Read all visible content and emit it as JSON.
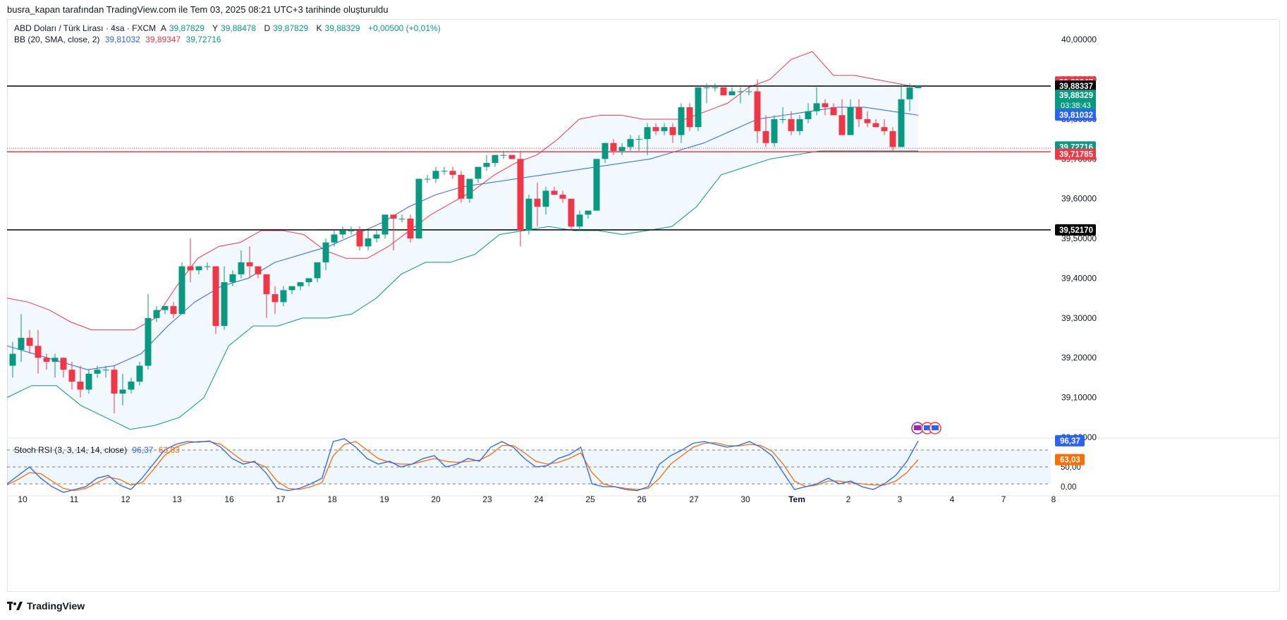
{
  "header": {
    "text": "busra_kapan tarafından TradingView.com ile Tem 03, 2025 08:21 UTC+3 tarihinde oluşturuldu"
  },
  "legend": {
    "symbol": "ABD Doları / Türk Lirası · 4sa · FXCM",
    "o_label": "A",
    "o": "39,87829",
    "h_label": "Y",
    "h": "39,88478",
    "l_label": "D",
    "l": "39,87829",
    "c_label": "K",
    "c": "39,88329",
    "change": "+0,00500 (+0,01%)",
    "bb_label": "BB (20, SMA, close, 2)",
    "bb_basis": "39,81032",
    "bb_upper": "39,89347",
    "bb_lower": "39,72716"
  },
  "stoch": {
    "label": "Stoch RSI (3, 3, 14, 14, close)",
    "k": "96,37",
    "d": "63,03"
  },
  "brand": {
    "name": "TradingView"
  },
  "colors": {
    "up": "#089981",
    "down": "#f23645",
    "basis": "#2962ff",
    "upper": "#f23645",
    "lower": "#089981",
    "k_line": "#2962ff",
    "d_line": "#ff6d00"
  },
  "chart_data": {
    "type": "candlestick",
    "ylim": [
      39.0,
      40.05
    ],
    "y_ticks": [
      "40,00000",
      "39,90000",
      "39,80000",
      "39,70000",
      "39,60000",
      "39,50000",
      "39,40000",
      "39,30000",
      "39,20000",
      "39,10000",
      "39,00000"
    ],
    "x_ticks": [
      "10",
      "11",
      "12",
      "13",
      "16",
      "17",
      "18",
      "19",
      "20",
      "23",
      "24",
      "25",
      "26",
      "27",
      "30",
      "Tem",
      "2",
      "3",
      "4",
      "7",
      "8"
    ],
    "horizontal_lines": [
      {
        "value": 39.88337,
        "color": "#000000",
        "label": "39,88337"
      },
      {
        "value": 39.71785,
        "color": "#f23645",
        "label": "39,71785"
      },
      {
        "value": 39.5217,
        "color": "#000000",
        "label": "39,52170"
      }
    ],
    "price_labels": [
      {
        "value": 39.89347,
        "text": "39,89347",
        "color": "#f23645"
      },
      {
        "value": 39.88337,
        "text": "39,88337",
        "color": "#000000"
      },
      {
        "value": 39.86,
        "text": "39,88329",
        "sub": "03:38:43",
        "color": "#089981"
      },
      {
        "value": 39.81032,
        "text": "39,81032",
        "color": "#2962ff"
      },
      {
        "value": 39.73,
        "text": "39,72716",
        "color": "#089981"
      },
      {
        "value": 39.712,
        "text": "39,71785",
        "color": "#f23645"
      },
      {
        "value": 39.5217,
        "text": "39,52170",
        "color": "#000000"
      }
    ],
    "candles_ohlc": [
      [
        39.18,
        39.24,
        39.15,
        39.21
      ],
      [
        39.22,
        39.31,
        39.19,
        39.25
      ],
      [
        39.25,
        39.27,
        39.21,
        39.23
      ],
      [
        39.23,
        39.27,
        39.16,
        39.2
      ],
      [
        39.2,
        39.21,
        39.17,
        39.19
      ],
      [
        39.19,
        39.21,
        39.15,
        39.2
      ],
      [
        39.2,
        39.2,
        39.15,
        39.17
      ],
      [
        39.17,
        39.19,
        39.12,
        39.14
      ],
      [
        39.14,
        39.18,
        39.1,
        39.12
      ],
      [
        39.12,
        39.17,
        39.11,
        39.16
      ],
      [
        39.16,
        39.18,
        39.15,
        39.17
      ],
      [
        39.17,
        39.18,
        39.15,
        39.17
      ],
      [
        39.17,
        39.18,
        39.06,
        39.11
      ],
      [
        39.11,
        39.16,
        39.08,
        39.12
      ],
      [
        39.12,
        39.15,
        39.11,
        39.14
      ],
      [
        39.14,
        39.19,
        39.13,
        39.18
      ],
      [
        39.18,
        39.36,
        39.17,
        39.3
      ],
      [
        39.3,
        39.33,
        39.29,
        39.32
      ],
      [
        39.32,
        39.33,
        39.31,
        39.33
      ],
      [
        39.33,
        39.34,
        39.3,
        39.31
      ],
      [
        39.31,
        39.44,
        39.31,
        39.43
      ],
      [
        39.43,
        39.5,
        39.39,
        39.42
      ],
      [
        39.42,
        39.43,
        39.41,
        39.43
      ],
      [
        39.43,
        39.44,
        39.42,
        39.43
      ],
      [
        39.43,
        39.43,
        39.26,
        39.28
      ],
      [
        39.28,
        39.43,
        39.27,
        39.39
      ],
      [
        39.39,
        39.42,
        39.38,
        39.41
      ],
      [
        39.41,
        39.47,
        39.4,
        39.44
      ],
      [
        39.44,
        39.48,
        39.4,
        39.43
      ],
      [
        39.43,
        39.43,
        39.4,
        39.41
      ],
      [
        39.41,
        39.41,
        39.3,
        39.36
      ],
      [
        39.36,
        39.38,
        39.31,
        39.34
      ],
      [
        39.34,
        39.38,
        39.33,
        39.37
      ],
      [
        39.37,
        39.38,
        39.36,
        39.38
      ],
      [
        39.38,
        39.39,
        39.37,
        39.39
      ],
      [
        39.39,
        39.4,
        39.38,
        39.4
      ],
      [
        39.4,
        39.44,
        39.39,
        39.44
      ],
      [
        39.44,
        39.5,
        39.42,
        39.49
      ],
      [
        39.49,
        39.52,
        39.48,
        39.51
      ],
      [
        39.51,
        39.53,
        39.5,
        39.52
      ],
      [
        39.52,
        39.53,
        39.51,
        39.52
      ],
      [
        39.52,
        39.53,
        39.47,
        39.48
      ],
      [
        39.48,
        39.52,
        39.47,
        39.5
      ],
      [
        39.5,
        39.52,
        39.49,
        39.51
      ],
      [
        39.51,
        39.56,
        39.5,
        39.56
      ],
      [
        39.56,
        39.56,
        39.47,
        39.55
      ],
      [
        39.55,
        39.56,
        39.54,
        39.55
      ],
      [
        39.55,
        39.56,
        39.49,
        39.5
      ],
      [
        39.5,
        39.65,
        39.5,
        39.65
      ],
      [
        39.65,
        39.66,
        39.64,
        39.65
      ],
      [
        39.65,
        39.68,
        39.64,
        39.67
      ],
      [
        39.67,
        39.68,
        39.66,
        39.67
      ],
      [
        39.67,
        39.68,
        39.65,
        39.66
      ],
      [
        39.66,
        39.67,
        39.59,
        39.6
      ],
      [
        39.6,
        39.65,
        39.59,
        39.65
      ],
      [
        39.65,
        39.68,
        39.64,
        39.68
      ],
      [
        39.68,
        39.71,
        39.67,
        39.69
      ],
      [
        39.69,
        39.71,
        39.68,
        39.71
      ],
      [
        39.71,
        39.72,
        39.7,
        39.71
      ],
      [
        39.71,
        39.71,
        39.7,
        39.7
      ],
      [
        39.7,
        39.72,
        39.48,
        39.52
      ],
      [
        39.52,
        39.61,
        39.51,
        39.6
      ],
      [
        39.6,
        39.64,
        39.53,
        39.58
      ],
      [
        39.58,
        39.63,
        39.56,
        39.62
      ],
      [
        39.62,
        39.63,
        39.61,
        39.61
      ],
      [
        39.61,
        39.62,
        39.59,
        39.6
      ],
      [
        39.6,
        39.6,
        39.52,
        39.53
      ],
      [
        39.53,
        39.57,
        39.52,
        39.56
      ],
      [
        39.56,
        39.57,
        39.55,
        39.57
      ],
      [
        39.57,
        39.7,
        39.57,
        39.7
      ],
      [
        39.7,
        39.74,
        39.69,
        39.74
      ],
      [
        39.74,
        39.75,
        39.71,
        39.72
      ],
      [
        39.72,
        39.74,
        39.71,
        39.73
      ],
      [
        39.73,
        39.76,
        39.72,
        39.75
      ],
      [
        39.75,
        39.76,
        39.72,
        39.75
      ],
      [
        39.75,
        39.79,
        39.71,
        39.78
      ],
      [
        39.78,
        39.79,
        39.76,
        39.77
      ],
      [
        39.77,
        39.79,
        39.76,
        39.78
      ],
      [
        39.78,
        39.79,
        39.74,
        39.76
      ],
      [
        39.76,
        39.84,
        39.74,
        39.83
      ],
      [
        39.83,
        39.84,
        39.77,
        39.78
      ],
      [
        39.78,
        39.88,
        39.77,
        39.88
      ],
      [
        39.88,
        39.89,
        39.84,
        39.88
      ],
      [
        39.88,
        39.89,
        39.87,
        39.88
      ],
      [
        39.88,
        39.88,
        39.86,
        39.86
      ],
      [
        39.86,
        39.88,
        39.86,
        39.87
      ],
      [
        39.87,
        39.88,
        39.84,
        39.87
      ],
      [
        39.87,
        39.88,
        39.86,
        39.87
      ],
      [
        39.87,
        39.9,
        39.74,
        39.77
      ],
      [
        39.77,
        39.81,
        39.73,
        39.74
      ],
      [
        39.74,
        39.81,
        39.73,
        39.8
      ],
      [
        39.8,
        39.83,
        39.79,
        39.8
      ],
      [
        39.8,
        39.82,
        39.76,
        39.77
      ],
      [
        39.77,
        39.81,
        39.76,
        39.8
      ],
      [
        39.8,
        39.84,
        39.79,
        39.82
      ],
      [
        39.82,
        39.88,
        39.81,
        39.84
      ],
      [
        39.84,
        39.85,
        39.81,
        39.83
      ],
      [
        39.83,
        39.84,
        39.81,
        39.81
      ],
      [
        39.81,
        39.85,
        39.76,
        39.76
      ],
      [
        39.76,
        39.85,
        39.76,
        39.83
      ],
      [
        39.83,
        39.85,
        39.78,
        39.8
      ],
      [
        39.8,
        39.82,
        39.78,
        39.79
      ],
      [
        39.79,
        39.8,
        39.78,
        39.78
      ],
      [
        39.78,
        39.8,
        39.76,
        39.77
      ],
      [
        39.77,
        39.78,
        39.72,
        39.73
      ],
      [
        39.73,
        39.89,
        39.73,
        39.85
      ],
      [
        39.85,
        39.89,
        39.82,
        39.88
      ],
      [
        39.878,
        39.885,
        39.878,
        39.883
      ]
    ],
    "bb_upper": [
      39.35,
      39.34,
      39.32,
      39.29,
      39.27,
      39.27,
      39.27,
      39.3,
      39.38,
      39.45,
      39.48,
      39.49,
      39.52,
      39.52,
      39.51,
      39.47,
      39.45,
      39.45,
      39.48,
      39.52,
      39.56,
      39.59,
      39.62,
      39.66,
      39.69,
      39.71,
      39.75,
      39.8,
      39.81,
      39.81,
      39.8,
      39.8,
      39.8,
      39.82,
      39.84,
      39.88,
      39.9,
      39.95,
      39.97,
      39.91,
      39.91,
      39.9,
      39.89,
      39.88
    ],
    "bb_basis": [
      39.23,
      39.21,
      39.19,
      39.17,
      39.18,
      39.21,
      39.28,
      39.34,
      39.38,
      39.4,
      39.44,
      39.46,
      39.48,
      39.51,
      39.54,
      39.58,
      39.61,
      39.63,
      39.64,
      39.65,
      39.66,
      39.67,
      39.68,
      39.69,
      39.7,
      39.72,
      39.74,
      39.77,
      39.8,
      39.81,
      39.82,
      39.83,
      39.83,
      39.82,
      39.81
    ],
    "bb_lower": [
      39.1,
      39.13,
      39.13,
      39.08,
      39.05,
      39.02,
      39.03,
      39.05,
      39.1,
      39.23,
      39.28,
      39.28,
      39.3,
      39.3,
      39.31,
      39.35,
      39.41,
      39.44,
      39.44,
      39.46,
      39.51,
      39.52,
      39.53,
      39.52,
      39.52,
      39.51,
      39.52,
      39.53,
      39.58,
      39.66,
      39.68,
      39.7,
      39.71,
      39.72,
      39.72,
      39.72,
      39.72,
      39.72
    ],
    "stoch_ylim": [
      0,
      100
    ],
    "stoch_ticks": [
      "96,37",
      "63,03",
      "50,00",
      "0,00"
    ],
    "stoch_levels": [
      80,
      50,
      20
    ],
    "stoch_k": [
      20,
      35,
      50,
      30,
      15,
      5,
      10,
      15,
      30,
      35,
      18,
      10,
      30,
      55,
      80,
      90,
      95,
      94,
      96,
      85,
      65,
      55,
      60,
      40,
      12,
      8,
      12,
      20,
      30,
      95,
      100,
      85,
      65,
      55,
      60,
      50,
      55,
      65,
      70,
      50,
      55,
      65,
      60,
      85,
      95,
      85,
      65,
      50,
      52,
      65,
      72,
      85,
      20,
      15,
      15,
      10,
      8,
      15,
      55,
      70,
      80,
      92,
      95,
      90,
      85,
      88,
      95,
      85,
      70,
      40,
      10,
      15,
      20,
      30,
      20,
      25,
      15,
      10,
      20,
      35,
      60,
      96
    ],
    "stoch_d": [
      18,
      28,
      40,
      38,
      25,
      12,
      8,
      12,
      22,
      32,
      28,
      18,
      22,
      45,
      70,
      85,
      92,
      95,
      95,
      90,
      75,
      60,
      58,
      50,
      25,
      12,
      10,
      15,
      22,
      70,
      90,
      95,
      80,
      65,
      58,
      55,
      55,
      60,
      65,
      60,
      58,
      60,
      62,
      72,
      88,
      88,
      75,
      60,
      55,
      58,
      65,
      75,
      40,
      20,
      15,
      12,
      10,
      12,
      30,
      55,
      70,
      85,
      92,
      93,
      88,
      87,
      90,
      88,
      78,
      55,
      25,
      15,
      18,
      25,
      25,
      22,
      20,
      18,
      18,
      25,
      40,
      63
    ]
  }
}
